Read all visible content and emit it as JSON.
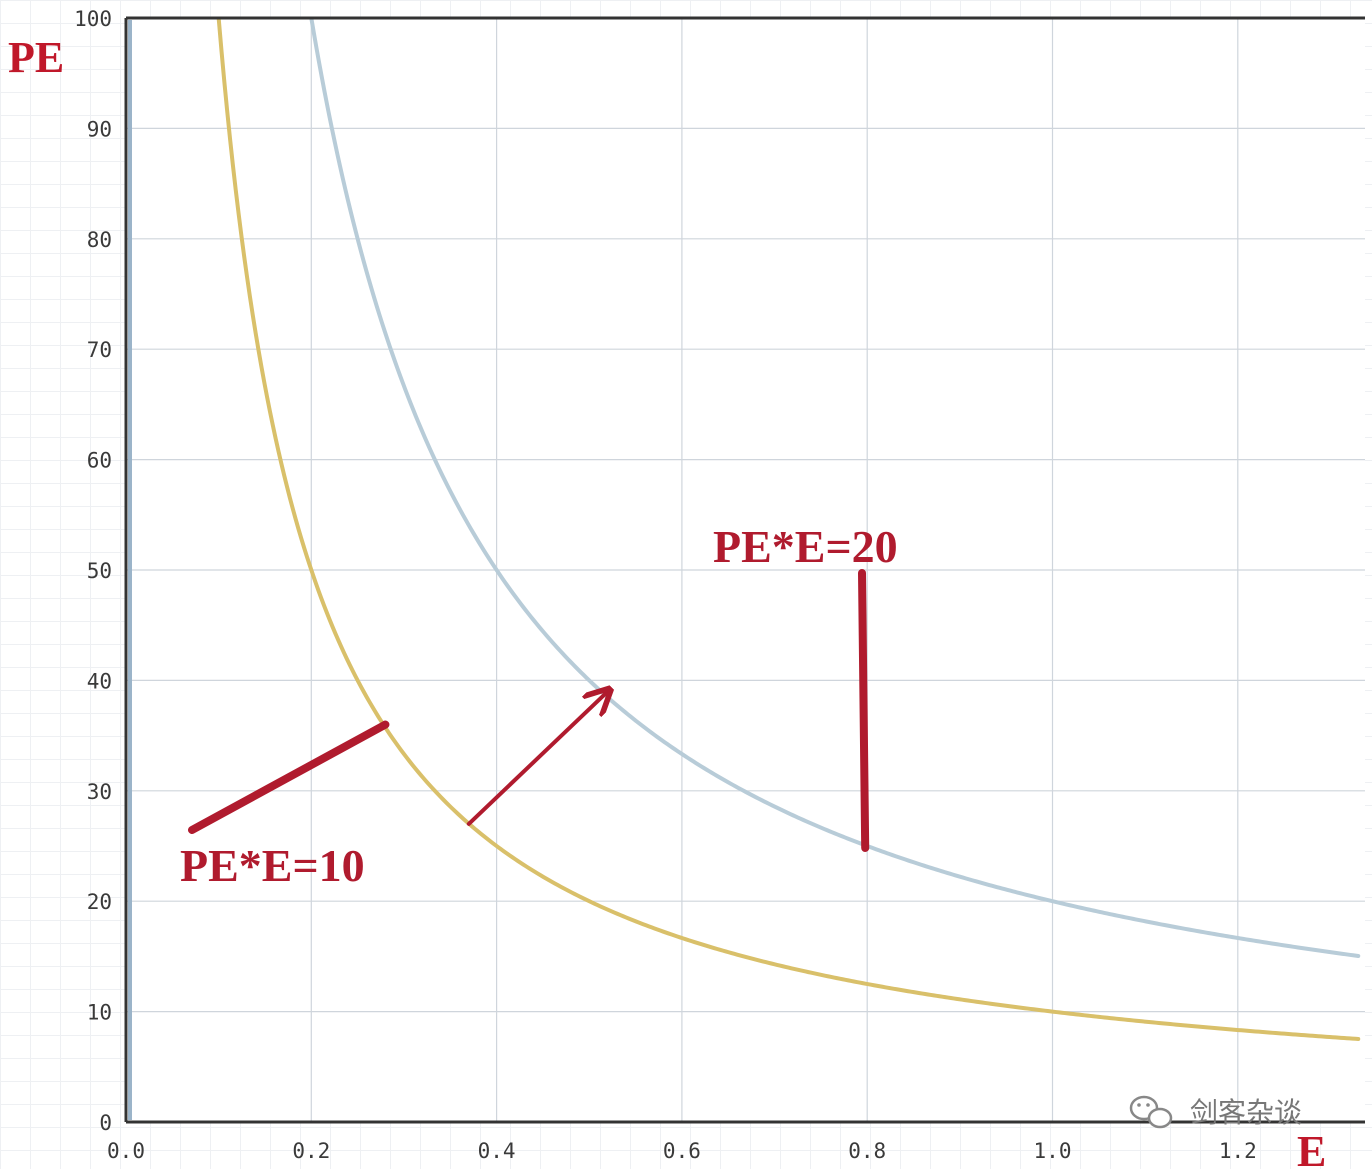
{
  "chart_data": {
    "type": "line",
    "x": {
      "label": "E",
      "min": 0.0,
      "max": 1.33,
      "ticks": [
        0.0,
        0.2,
        0.4,
        0.6,
        0.8,
        1.0,
        1.2
      ],
      "tick_labels": [
        "0.0",
        "0.2",
        "0.4",
        "0.6",
        "0.8",
        "1.0",
        "1.2"
      ]
    },
    "y": {
      "label": "PE",
      "min": 0,
      "max": 100,
      "ticks": [
        0,
        10,
        20,
        30,
        40,
        50,
        60,
        70,
        80,
        90,
        100
      ],
      "tick_labels": [
        "0",
        "10",
        "20",
        "30",
        "40",
        "50",
        "60",
        "70",
        "80",
        "90",
        "100"
      ]
    },
    "grid": true,
    "series": [
      {
        "color": "#d9c06a",
        "formula": "PE = 10 / E",
        "points": [
          [
            0.1,
            100
          ],
          [
            0.125,
            80
          ],
          [
            0.2,
            50
          ],
          [
            0.25,
            40
          ],
          [
            0.4,
            25
          ],
          [
            0.5,
            20
          ],
          [
            0.6,
            16.7
          ],
          [
            0.8,
            12.5
          ],
          [
            1.0,
            10
          ],
          [
            1.2,
            8.3
          ],
          [
            1.33,
            7.5
          ]
        ]
      },
      {
        "color": "#b8ccd8",
        "formula": "PE = 20 / E",
        "points": [
          [
            0.2,
            100
          ],
          [
            0.25,
            80
          ],
          [
            0.4,
            50
          ],
          [
            0.5,
            40
          ],
          [
            0.6,
            33.3
          ],
          [
            0.8,
            25
          ],
          [
            1.0,
            20
          ],
          [
            1.2,
            16.7
          ],
          [
            1.33,
            15
          ]
        ]
      }
    ],
    "annotations": [
      {
        "text": "PE*E=10",
        "target": [
          0.28,
          36
        ]
      },
      {
        "text": "PE*E=20",
        "target": [
          0.8,
          25
        ]
      }
    ],
    "arrow": {
      "from": [
        0.37,
        27
      ],
      "to": [
        0.52,
        39
      ]
    }
  },
  "watermark": {
    "text": "剑客杂谈",
    "icon": "wechat-icon"
  },
  "colors": {
    "annotation": "#b01b2e",
    "axis": "#333333",
    "grid": "#cfd5dc"
  }
}
